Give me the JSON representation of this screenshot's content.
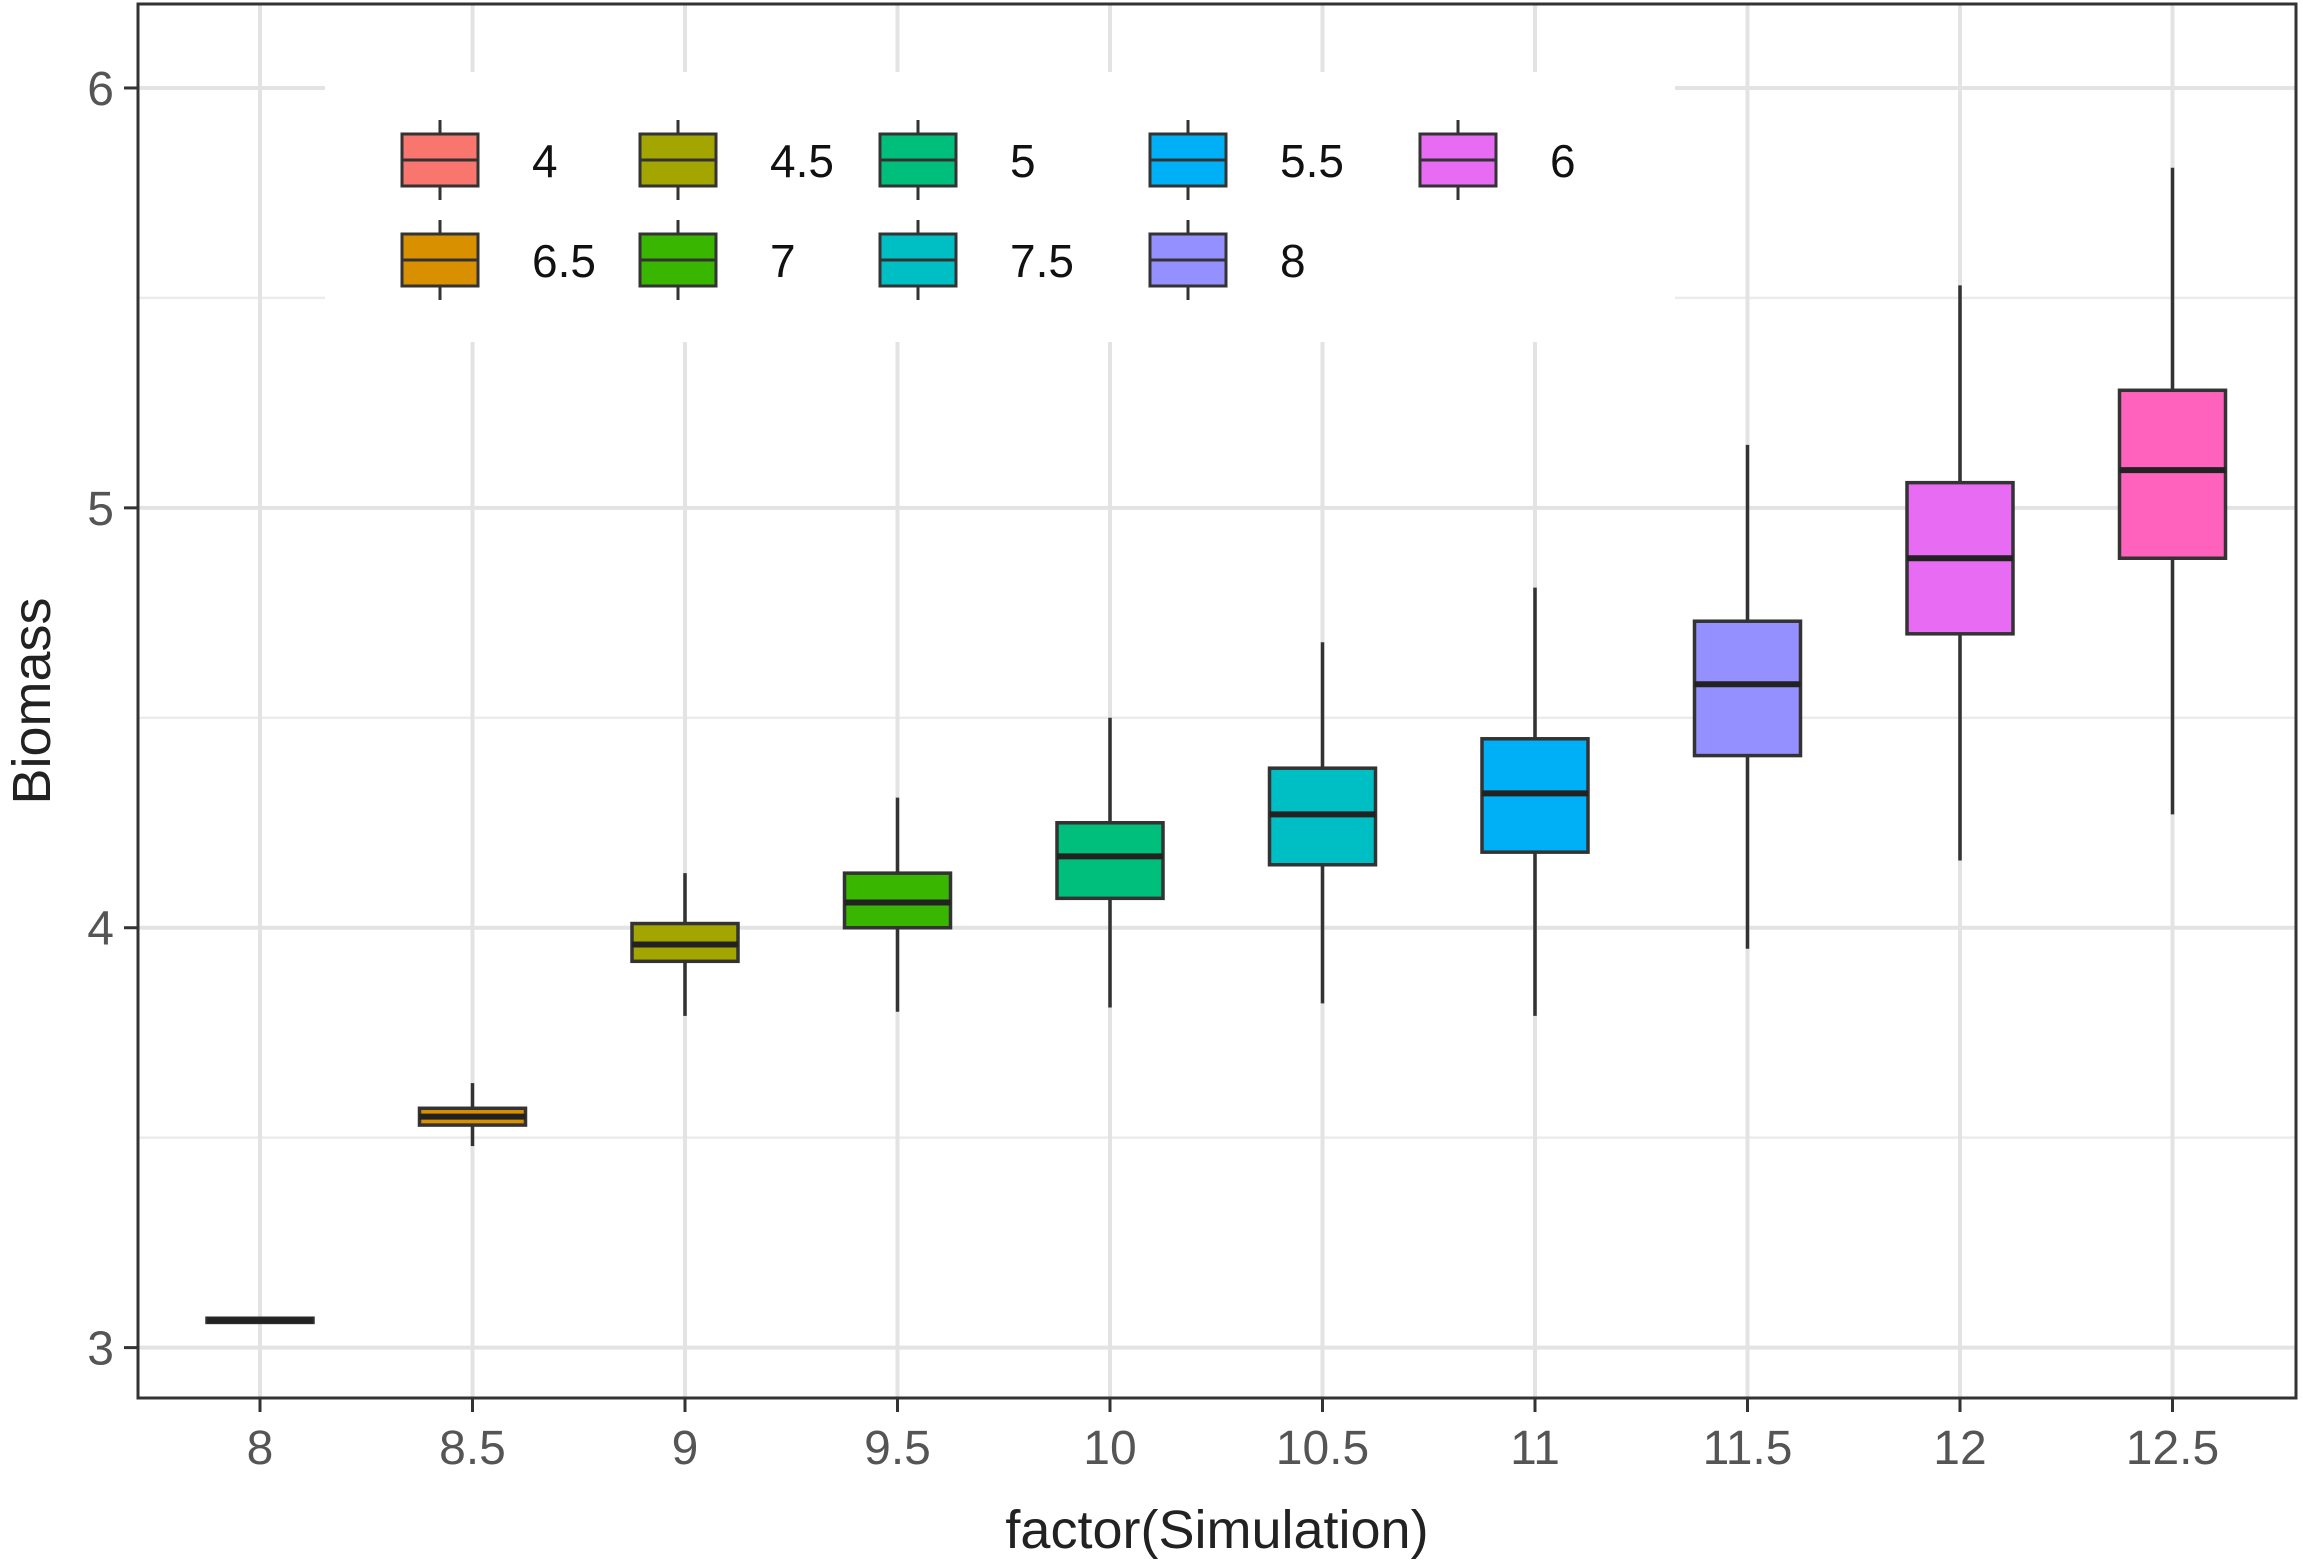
{
  "chart_data": {
    "type": "box",
    "title": "",
    "xlabel": "factor(Simulation)",
    "ylabel": "Biomass",
    "ylim": [
      2.88,
      6.2
    ],
    "yticks": [
      3,
      4,
      5,
      6
    ],
    "grid": true,
    "categories": [
      "8",
      "8.5",
      "9",
      "9.5",
      "10",
      "10.5",
      "11",
      "11.5",
      "12",
      "12.5"
    ],
    "boxes": [
      {
        "category": "8",
        "min": 3.06,
        "q1": 3.06,
        "median": 3.065,
        "q3": 3.07,
        "max": 3.07,
        "color": "#F8766D"
      },
      {
        "category": "8.5",
        "min": 3.48,
        "q1": 3.53,
        "median": 3.55,
        "q3": 3.57,
        "max": 3.63,
        "color": "#D89000"
      },
      {
        "category": "9",
        "min": 3.79,
        "q1": 3.92,
        "median": 3.96,
        "q3": 4.01,
        "max": 4.13,
        "color": "#A3A500"
      },
      {
        "category": "9.5",
        "min": 3.8,
        "q1": 4.0,
        "median": 4.06,
        "q3": 4.13,
        "max": 4.31,
        "color": "#39B600"
      },
      {
        "category": "10",
        "min": 3.81,
        "q1": 4.07,
        "median": 4.17,
        "q3": 4.25,
        "max": 4.5,
        "color": "#00BF7D"
      },
      {
        "category": "10.5",
        "min": 3.82,
        "q1": 4.15,
        "median": 4.27,
        "q3": 4.38,
        "max": 4.68,
        "color": "#00BFC4"
      },
      {
        "category": "11",
        "min": 3.79,
        "q1": 4.18,
        "median": 4.32,
        "q3": 4.45,
        "max": 4.81,
        "color": "#00B0F6"
      },
      {
        "category": "11.5",
        "min": 3.95,
        "q1": 4.41,
        "median": 4.58,
        "q3": 4.73,
        "max": 5.15,
        "color": "#9590FF"
      },
      {
        "category": "12",
        "min": 4.16,
        "q1": 4.7,
        "median": 4.88,
        "q3": 5.06,
        "max": 5.53,
        "color": "#E76BF3"
      },
      {
        "category": "12.5",
        "min": 4.27,
        "q1": 4.88,
        "median": 5.09,
        "q3": 5.28,
        "max": 5.81,
        "color": "#FF62BC"
      }
    ],
    "legend": {
      "placement": "top-left, inside plot",
      "rows": [
        [
          {
            "label": "4",
            "color": "#F8766D"
          },
          {
            "label": "4.5",
            "color": "#A3A500"
          },
          {
            "label": "5",
            "color": "#00BF7D"
          },
          {
            "label": "5.5",
            "color": "#00B0F6"
          },
          {
            "label": "6",
            "color": "#E76BF3"
          }
        ],
        [
          {
            "label": "6.5",
            "color": "#D89000"
          },
          {
            "label": "7",
            "color": "#39B600"
          },
          {
            "label": "7.5",
            "color": "#00BFC4"
          },
          {
            "label": "8",
            "color": "#9590FF"
          }
        ]
      ]
    }
  }
}
